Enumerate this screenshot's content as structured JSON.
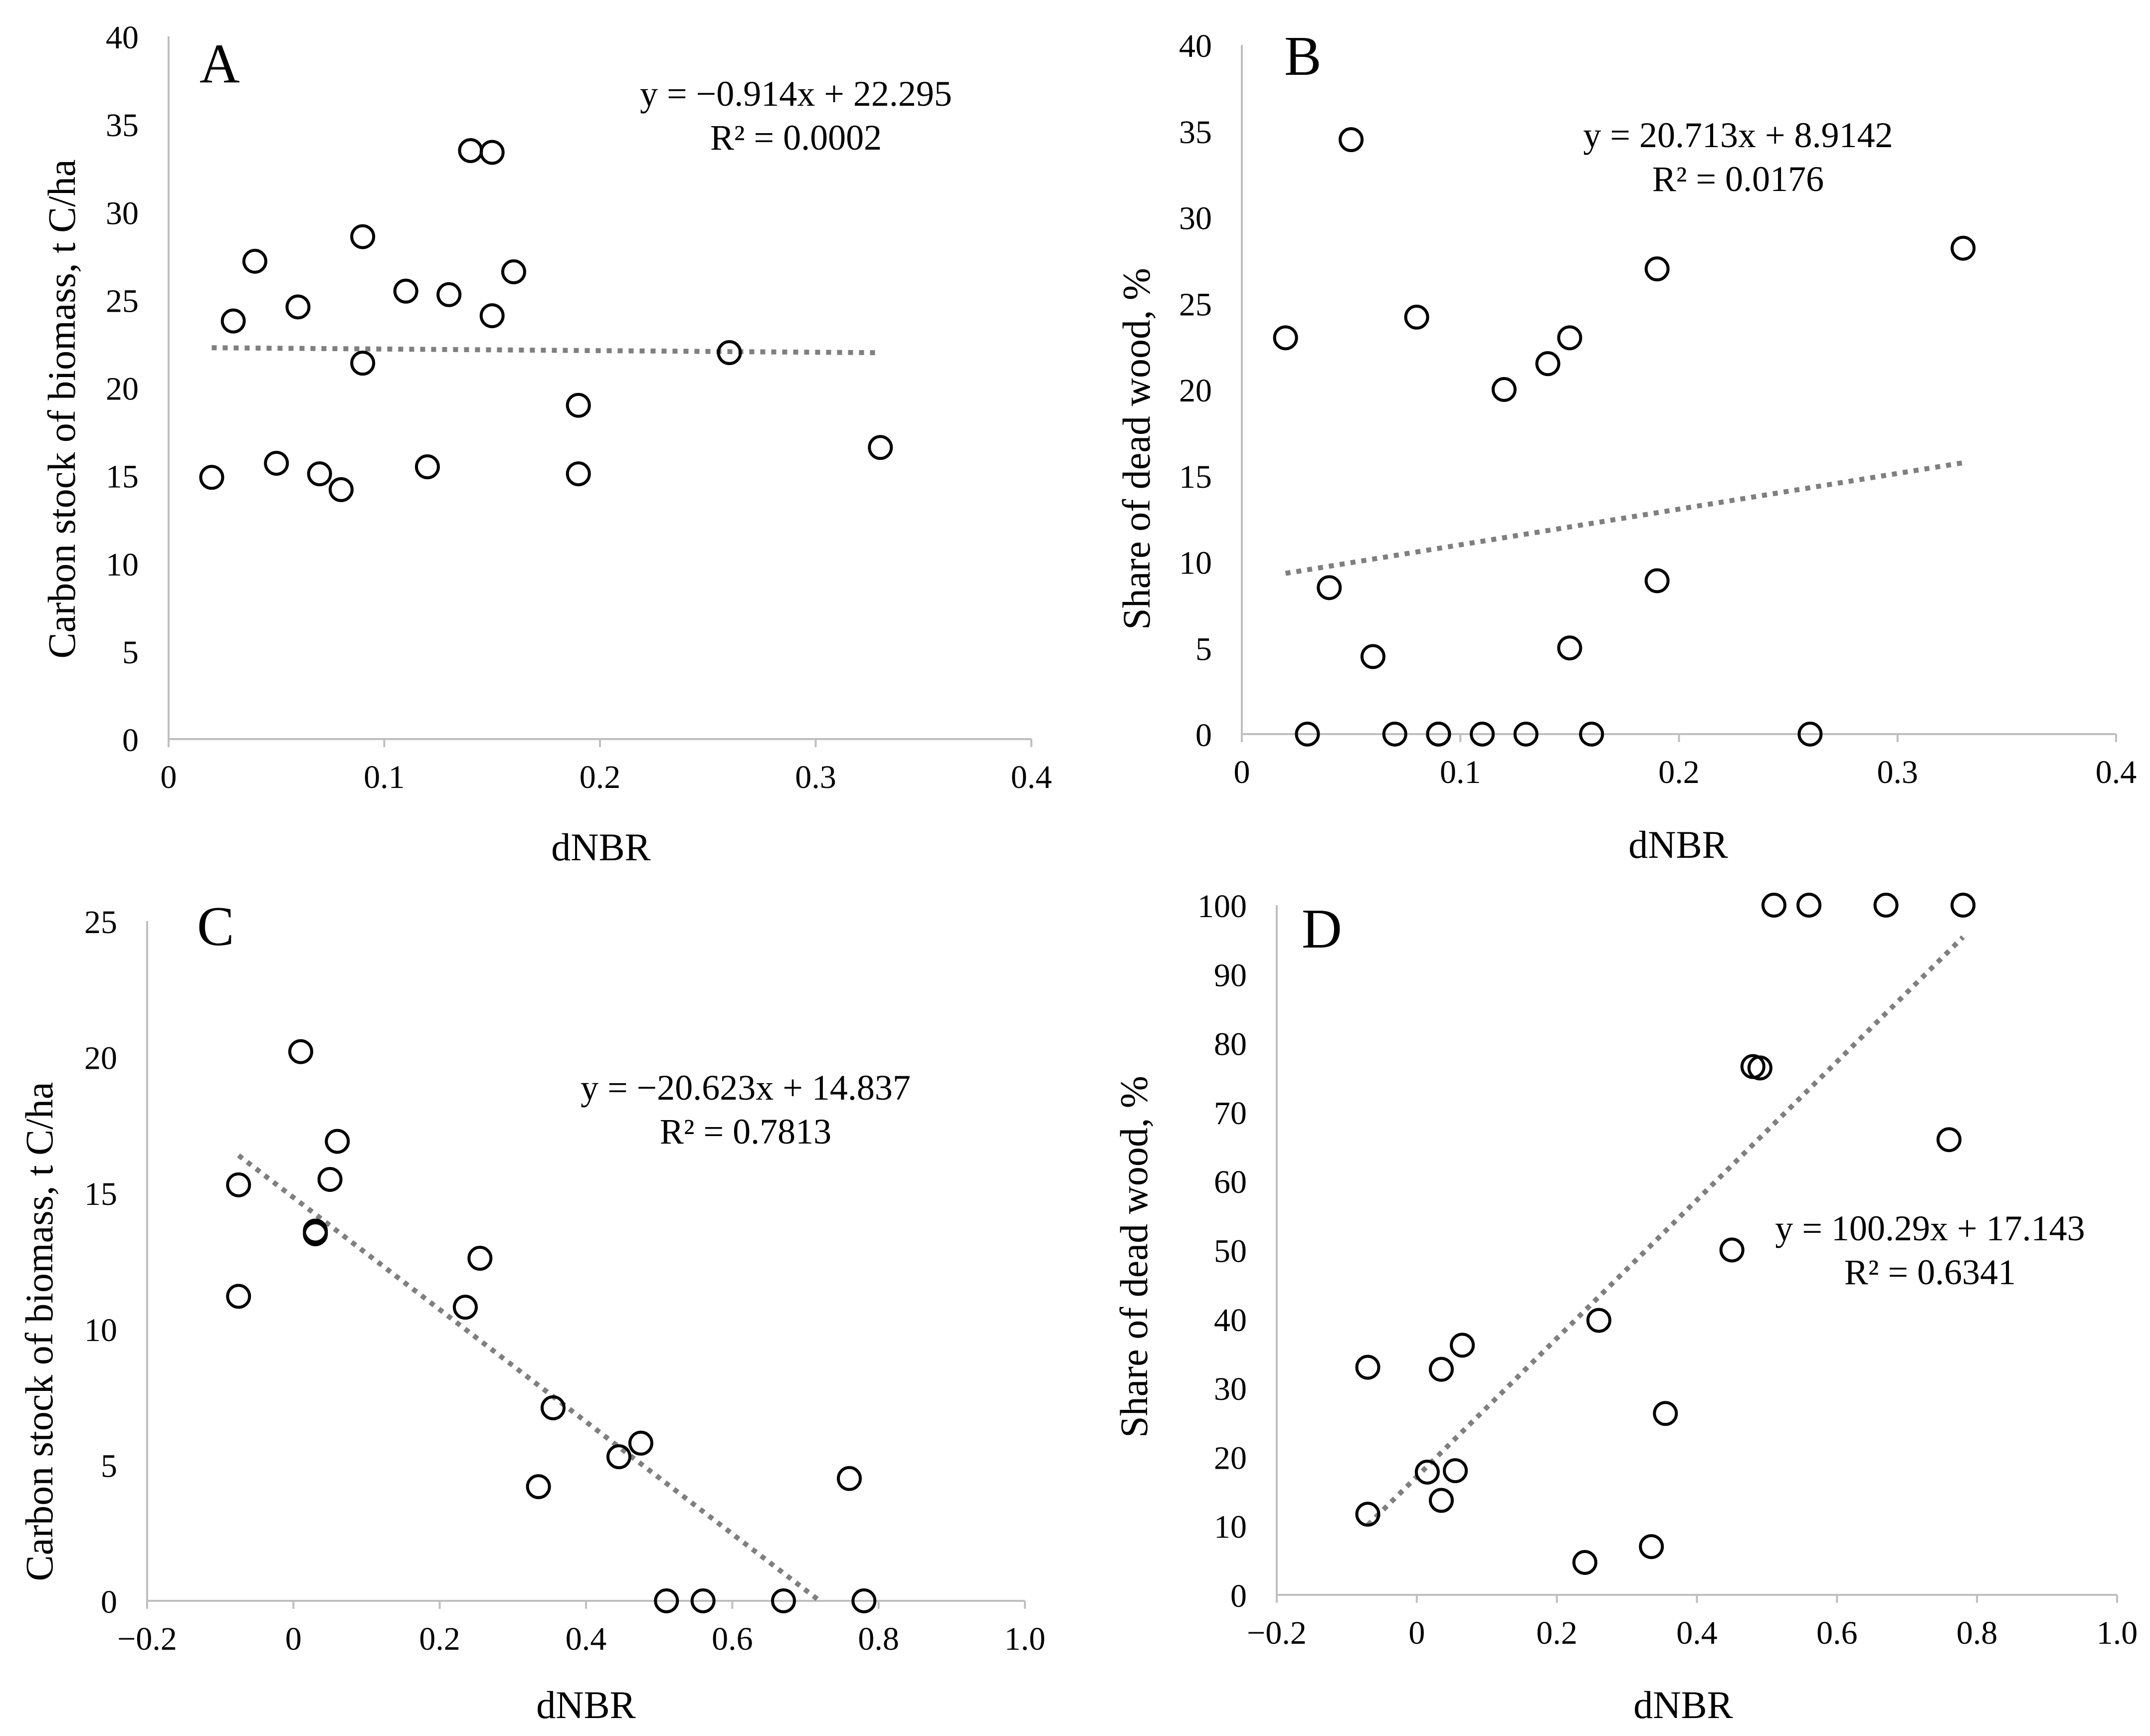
{
  "chart_data": [
    {
      "panel": "A",
      "type": "scatter",
      "xlabel": "dNBR",
      "ylabel": "Carbon stock of biomass, t C/ha",
      "xlim": [
        0,
        0.4
      ],
      "ylim": [
        0,
        40
      ],
      "xticks": [
        0,
        0.1,
        0.2,
        0.3,
        0.4
      ],
      "xtick_labels": [
        "0",
        "0.1",
        "0.2",
        "0.3",
        "0.4"
      ],
      "yticks": [
        0,
        5,
        10,
        15,
        20,
        25,
        30,
        35,
        40
      ],
      "ytick_labels": [
        "0",
        "5",
        "10",
        "15",
        "20",
        "25",
        "30",
        "35",
        "40"
      ],
      "points": [
        [
          0.02,
          14.9
        ],
        [
          0.03,
          23.8
        ],
        [
          0.04,
          27.2
        ],
        [
          0.05,
          15.7
        ],
        [
          0.06,
          24.6
        ],
        [
          0.07,
          15.1
        ],
        [
          0.08,
          14.2
        ],
        [
          0.09,
          28.6
        ],
        [
          0.09,
          21.4
        ],
        [
          0.11,
          25.5
        ],
        [
          0.12,
          15.5
        ],
        [
          0.13,
          25.3
        ],
        [
          0.14,
          33.5
        ],
        [
          0.15,
          33.4
        ],
        [
          0.15,
          24.1
        ],
        [
          0.16,
          26.6
        ],
        [
          0.19,
          19.0
        ],
        [
          0.19,
          15.1
        ],
        [
          0.26,
          22.0
        ],
        [
          0.33,
          16.6
        ]
      ],
      "trendline": {
        "x": [
          0.02,
          0.33
        ],
        "slope": -0.914,
        "intercept": 22.295
      },
      "equation": "y = −0.914x + 22.295",
      "r2": "R² = 0.0002"
    },
    {
      "panel": "B",
      "type": "scatter",
      "xlabel": "dNBR",
      "ylabel": "Share of dead wood, %",
      "xlim": [
        0,
        0.4
      ],
      "ylim": [
        0,
        40
      ],
      "xticks": [
        0,
        0.1,
        0.2,
        0.3,
        0.4
      ],
      "xtick_labels": [
        "0",
        "0.1",
        "0.2",
        "0.3",
        "0.4"
      ],
      "yticks": [
        0,
        5,
        10,
        15,
        20,
        25,
        30,
        35,
        40
      ],
      "ytick_labels": [
        "0",
        "5",
        "10",
        "15",
        "20",
        "25",
        "30",
        "35",
        "40"
      ],
      "points": [
        [
          0.02,
          23.0
        ],
        [
          0.03,
          0
        ],
        [
          0.04,
          8.5
        ],
        [
          0.05,
          34.5
        ],
        [
          0.06,
          4.5
        ],
        [
          0.07,
          0
        ],
        [
          0.08,
          24.2
        ],
        [
          0.09,
          0
        ],
        [
          0.09,
          0
        ],
        [
          0.11,
          0
        ],
        [
          0.12,
          20.0
        ],
        [
          0.13,
          0
        ],
        [
          0.14,
          21.5
        ],
        [
          0.15,
          23.0
        ],
        [
          0.15,
          5.0
        ],
        [
          0.16,
          0
        ],
        [
          0.19,
          27.0
        ],
        [
          0.19,
          8.9
        ],
        [
          0.26,
          0
        ],
        [
          0.33,
          28.2
        ]
      ],
      "trendline": {
        "x": [
          0.02,
          0.33
        ],
        "slope": 20.713,
        "intercept": 8.9142
      },
      "equation": "y = 20.713x + 8.9142",
      "r2": "R² = 0.0176"
    },
    {
      "panel": "C",
      "type": "scatter",
      "xlabel": "dNBR",
      "ylabel": "Carbon stock of biomass, t C/ha",
      "xlim": [
        -0.2,
        1.0
      ],
      "ylim": [
        0,
        25
      ],
      "xticks": [
        -0.2,
        0,
        0.2,
        0.4,
        0.6,
        0.8,
        1.0
      ],
      "xtick_labels": [
        "−0.2",
        "0",
        "0.2",
        "0.4",
        "0.6",
        "0.8",
        "1.0"
      ],
      "yticks": [
        0,
        5,
        10,
        15,
        20,
        25
      ],
      "ytick_labels": [
        "0",
        "5",
        "10",
        "15",
        "20",
        "25"
      ],
      "points": [
        [
          -0.075,
          15.3
        ],
        [
          -0.075,
          11.2
        ],
        [
          0.01,
          20.2
        ],
        [
          0.03,
          13.6
        ],
        [
          0.03,
          13.5
        ],
        [
          0.05,
          15.5
        ],
        [
          0.06,
          16.9
        ],
        [
          0.235,
          10.8
        ],
        [
          0.255,
          12.6
        ],
        [
          0.335,
          4.2
        ],
        [
          0.355,
          7.1
        ],
        [
          0.445,
          5.3
        ],
        [
          0.475,
          5.8
        ],
        [
          0.51,
          0
        ],
        [
          0.56,
          0
        ],
        [
          0.67,
          0
        ],
        [
          0.76,
          4.5
        ],
        [
          0.78,
          0
        ]
      ],
      "trendline": {
        "x": [
          -0.075,
          0.72
        ],
        "slope": -20.623,
        "intercept": 14.837
      },
      "equation": "y = −20.623x + 14.837",
      "r2": "R² = 0.7813"
    },
    {
      "panel": "D",
      "type": "scatter",
      "xlabel": "dNBR",
      "ylabel": "Share of dead wood, %",
      "xlim": [
        -0.2,
        1.0
      ],
      "ylim": [
        0,
        100
      ],
      "xticks": [
        -0.2,
        0,
        0.2,
        0.4,
        0.6,
        0.8,
        1.0
      ],
      "xtick_labels": [
        "−0.2",
        "0",
        "0.2",
        "0.4",
        "0.6",
        "0.8",
        "1.0"
      ],
      "yticks": [
        0,
        10,
        20,
        30,
        40,
        50,
        60,
        70,
        80,
        90,
        100
      ],
      "ytick_labels": [
        "0",
        "10",
        "20",
        "30",
        "40",
        "50",
        "60",
        "70",
        "80",
        "90",
        "100"
      ],
      "points": [
        [
          -0.07,
          33.0
        ],
        [
          -0.07,
          11.7
        ],
        [
          0.015,
          17.8
        ],
        [
          0.035,
          32.7
        ],
        [
          0.035,
          13.7
        ],
        [
          0.055,
          18.0
        ],
        [
          0.065,
          36.2
        ],
        [
          0.24,
          4.7
        ],
        [
          0.26,
          39.8
        ],
        [
          0.335,
          7.0
        ],
        [
          0.355,
          26.3
        ],
        [
          0.45,
          50.0
        ],
        [
          0.48,
          76.6
        ],
        [
          0.49,
          76.4
        ],
        [
          0.51,
          100
        ],
        [
          0.56,
          100
        ],
        [
          0.67,
          100
        ],
        [
          0.76,
          66.0
        ],
        [
          0.78,
          100
        ]
      ],
      "trendline": {
        "x": [
          -0.07,
          0.78
        ],
        "slope": 100.29,
        "intercept": 17.143
      },
      "equation": "y = 100.29x + 17.143",
      "r2": "R² = 0.6341"
    }
  ]
}
